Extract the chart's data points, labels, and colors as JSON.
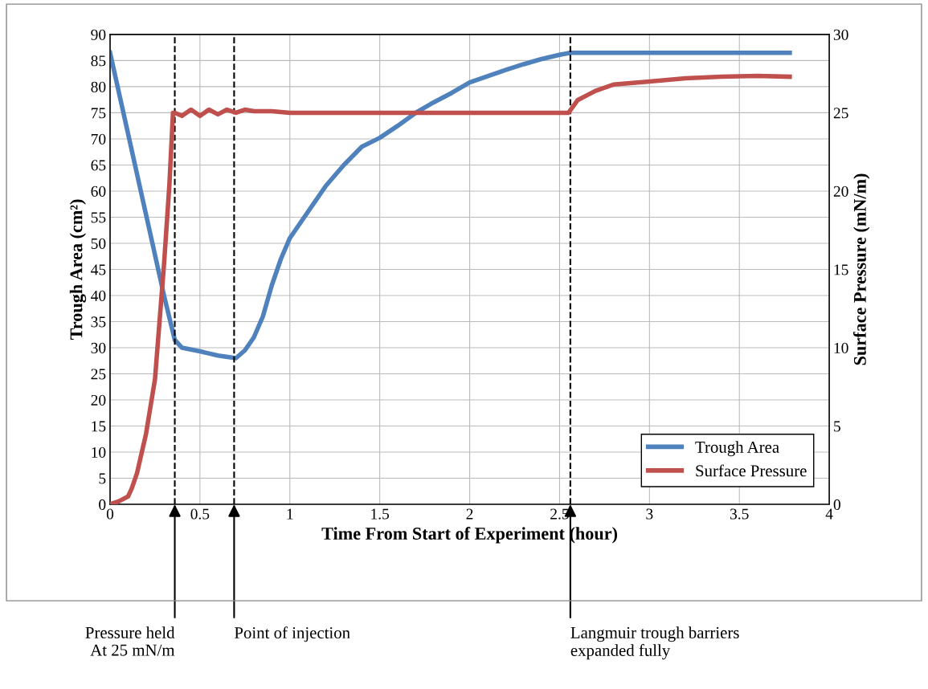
{
  "chart_data": {
    "type": "line",
    "xlabel": "Time From Start of Experiment (hour)",
    "ylabel": "Trough Area (cm²)",
    "y2label": "Surface Pressure (mN/m)",
    "xlim": [
      0,
      4
    ],
    "xticks": [
      0,
      0.5,
      1,
      1.5,
      2,
      2.5,
      3,
      3.5,
      4
    ],
    "ylim": [
      0,
      90
    ],
    "yticks": [
      0,
      5,
      10,
      15,
      20,
      25,
      30,
      35,
      40,
      45,
      50,
      55,
      60,
      65,
      70,
      75,
      80,
      85,
      90
    ],
    "y2lim": [
      0,
      30
    ],
    "y2ticks": [
      0,
      5,
      10,
      15,
      20,
      25,
      30
    ],
    "grid": true,
    "legend": "bottom right",
    "marker": "none",
    "line_style": "solid",
    "series": [
      {
        "name": "Trough Area",
        "color": "#4f81bd",
        "x": [
          0,
          0.1,
          0.2,
          0.3,
          0.36,
          0.4,
          0.5,
          0.6,
          0.7,
          0.75,
          0.8,
          0.85,
          0.9,
          0.95,
          1.0,
          1.1,
          1.2,
          1.3,
          1.4,
          1.5,
          1.6,
          1.7,
          1.8,
          1.9,
          2.0,
          2.1,
          2.2,
          2.3,
          2.4,
          2.5,
          2.56,
          3.0,
          3.5,
          3.78
        ],
        "values": [
          86.5,
          71,
          55.5,
          40,
          31.5,
          30,
          29.3,
          28.5,
          28,
          29.5,
          32,
          36,
          42,
          47,
          51,
          56,
          61,
          65,
          68.5,
          70.2,
          72.5,
          75,
          77,
          78.8,
          80.8,
          82,
          83.2,
          84.3,
          85.3,
          86.1,
          86.5,
          86.5,
          86.5,
          86.5
        ]
      },
      {
        "name": "Surface Pressure",
        "color": "#c0504d",
        "axis": "y2",
        "x": [
          0,
          0.05,
          0.1,
          0.12,
          0.15,
          0.2,
          0.25,
          0.3,
          0.33,
          0.35,
          0.36,
          0.4,
          0.45,
          0.5,
          0.55,
          0.6,
          0.65,
          0.7,
          0.75,
          0.8,
          0.9,
          1.0,
          1.5,
          2.0,
          2.55,
          2.6,
          2.7,
          2.8,
          3.0,
          3.2,
          3.4,
          3.6,
          3.78
        ],
        "values": [
          0,
          0.2,
          0.5,
          1,
          2,
          4.5,
          8,
          15.3,
          20.4,
          25,
          25,
          24.8,
          25.2,
          24.8,
          25.2,
          24.9,
          25.2,
          25,
          25.2,
          25.1,
          25.1,
          25,
          25,
          25,
          25,
          25.8,
          26.4,
          26.8,
          27,
          27.2,
          27.3,
          27.35,
          27.3
        ]
      }
    ],
    "ref_lines": [
      {
        "axis": "x",
        "value": 0.36,
        "line_style": "dashed",
        "color": "#000000"
      },
      {
        "axis": "x",
        "value": 0.69,
        "line_style": "dashed",
        "color": "#000000"
      },
      {
        "axis": "x",
        "value": 2.56,
        "line_style": "dashed",
        "color": "#000000"
      }
    ],
    "annotations": [
      {
        "text": "Pressure held\nAt 25 mN/m",
        "x": 0.36,
        "y": 0
      },
      {
        "text": "Point of injection",
        "x": 0.69,
        "y": 0
      },
      {
        "text": "Langmuir trough barriers\nexpanded fully",
        "x": 2.56,
        "y": 0
      }
    ]
  }
}
